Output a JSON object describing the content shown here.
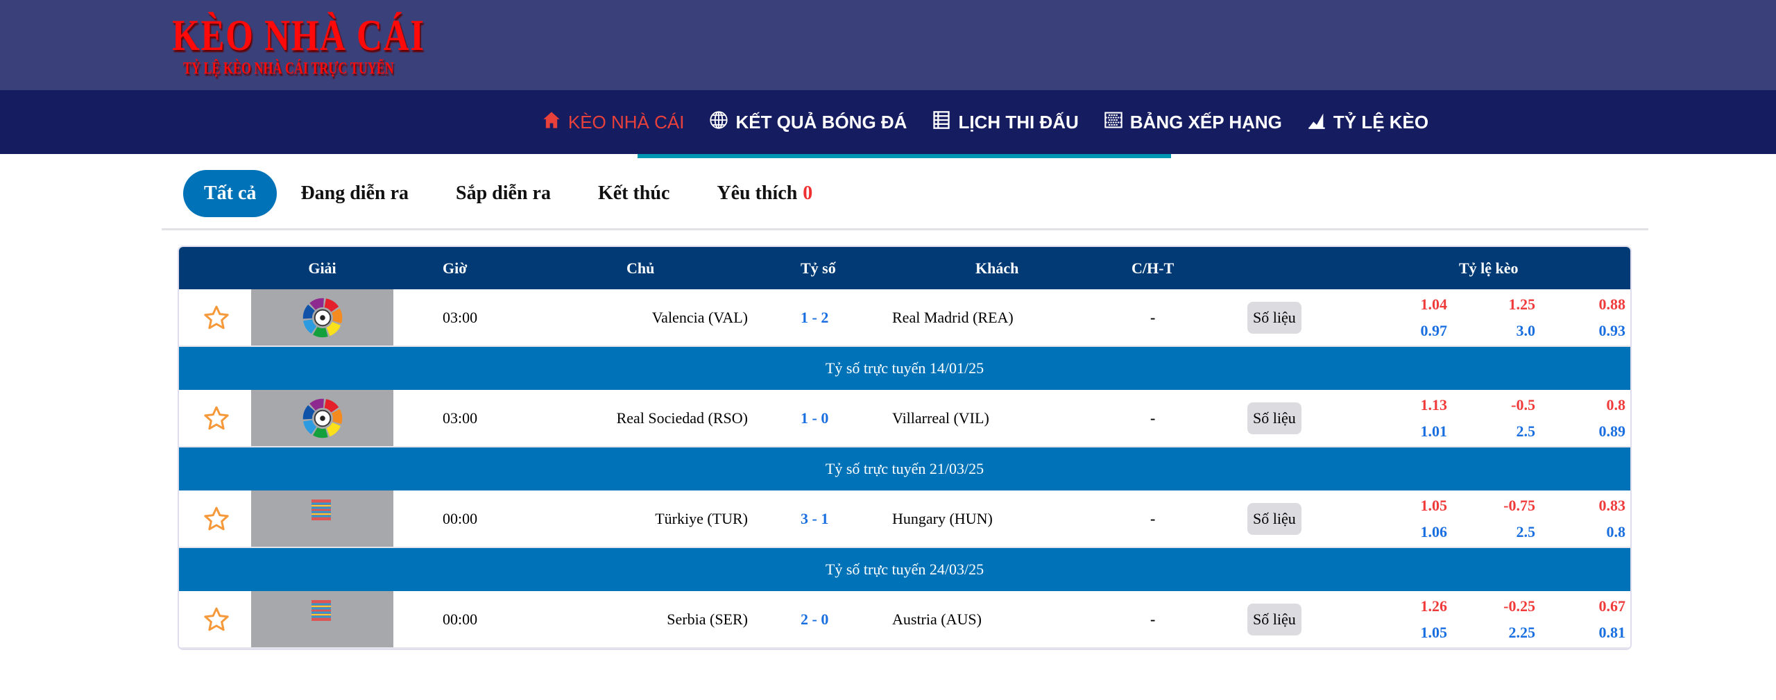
{
  "logo": {
    "title": "KÈO NHÀ CÁI",
    "subtitle": "TỶ LỆ KÈO NHÀ CÁI TRỰC TUYẾN"
  },
  "nav": [
    {
      "label": "KÈO NHÀ CÁI",
      "icon": "home-icon",
      "active": true
    },
    {
      "label": "KẾT QUẢ BÓNG ĐÁ",
      "icon": "globe-icon"
    },
    {
      "label": "LỊCH THI ĐẤU",
      "icon": "list-icon"
    },
    {
      "label": "BẢNG XẾP HẠNG",
      "icon": "table-icon"
    },
    {
      "label": "TỶ LỆ KÈO",
      "icon": "chart-icon"
    }
  ],
  "tabs": [
    {
      "label": "Tất cả",
      "active": true
    },
    {
      "label": "Đang diễn ra"
    },
    {
      "label": "Sắp diễn ra"
    },
    {
      "label": "Kết thúc"
    },
    {
      "label": "Yêu thích",
      "count": "0"
    }
  ],
  "table": {
    "headers": {
      "league": "Giải",
      "time": "Giờ",
      "home": "Chủ",
      "score": "Tỷ số",
      "away": "Khách",
      "cht": "C/H-T",
      "odds": "Tỷ lệ kèo"
    },
    "stats_label": "Số liệu",
    "rows": [
      {
        "league_logo": "laliga",
        "time": "03:00",
        "home": "Valencia (VAL)",
        "score": "1 - 2",
        "away": "Real Madrid (REA)",
        "cht": "-",
        "odds_top": [
          "1.04",
          "1.25",
          "0.88"
        ],
        "odds_bottom": [
          "0.97",
          "3.0",
          "0.93"
        ],
        "banner": "Tỷ số trực tuyến 14/01/25"
      },
      {
        "league_logo": "laliga",
        "time": "03:00",
        "home": "Real Sociedad (RSO)",
        "score": "1 - 0",
        "away": "Villarreal (VIL)",
        "cht": "-",
        "odds_top": [
          "1.13",
          "-0.5",
          "0.8"
        ],
        "odds_bottom": [
          "1.01",
          "2.5",
          "0.89"
        ],
        "banner": "Tỷ số trực tuyến 21/03/25"
      },
      {
        "league_logo": "nations-league",
        "time": "00:00",
        "home": "Türkiye (TUR)",
        "score": "3 - 1",
        "away": "Hungary (HUN)",
        "cht": "-",
        "odds_top": [
          "1.05",
          "-0.75",
          "0.83"
        ],
        "odds_bottom": [
          "1.06",
          "2.5",
          "0.8"
        ],
        "banner": "Tỷ số trực tuyến 24/03/25"
      },
      {
        "league_logo": "nations-league",
        "time": "00:00",
        "home": "Serbia (SER)",
        "score": "2 - 0",
        "away": "Austria (AUS)",
        "cht": "-",
        "odds_top": [
          "1.26",
          "-0.25",
          "0.67"
        ],
        "odds_bottom": [
          "1.05",
          "2.25",
          "0.81"
        ]
      }
    ]
  },
  "colors": {
    "header": "#3a417a",
    "nav": "#161c60",
    "accent": "#0073b8",
    "table_head": "#013a75",
    "odds_red": "#f03b3b",
    "odds_blue": "#1a6fe0",
    "star": "#f6993a"
  }
}
